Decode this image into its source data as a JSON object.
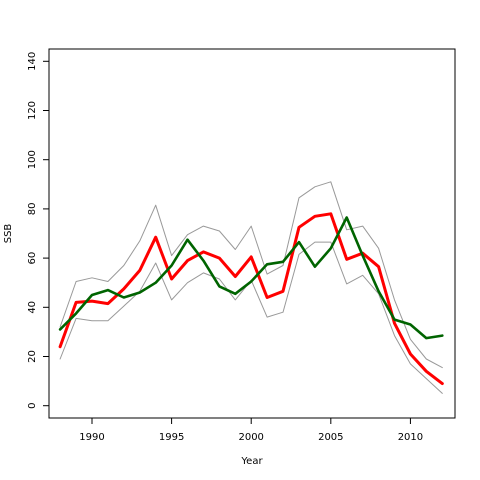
{
  "chart_data": {
    "type": "line",
    "title": "",
    "xlabel": "Year",
    "ylabel": "SSB",
    "xlim": [
      1987.3,
      2012.8
    ],
    "ylim": [
      -5,
      145
    ],
    "xticks": [
      1990,
      1995,
      2000,
      2005,
      2010
    ],
    "yticks": [
      0,
      20,
      40,
      60,
      80,
      100,
      120,
      140
    ],
    "grid": false,
    "legend": "none",
    "x": [
      1988,
      1989,
      1990,
      1991,
      1992,
      1993,
      1994,
      1995,
      1996,
      1997,
      1998,
      1999,
      2000,
      2001,
      2002,
      2003,
      2004,
      2005,
      2006,
      2007,
      2008,
      2009,
      2010,
      2011,
      2012
    ],
    "series": [
      {
        "color": "#999999",
        "style": "upper-bound",
        "width": 1,
        "values": [
          32,
          50.5,
          52,
          50.5,
          57,
          67,
          81.5,
          61,
          69.5,
          73,
          71,
          63.5,
          73,
          53.5,
          57,
          84.5,
          89,
          91,
          71.5,
          73,
          64,
          43,
          27,
          19,
          15.5
        ]
      },
      {
        "color": "#999999",
        "style": "lower-bound",
        "width": 1,
        "values": [
          19,
          35.5,
          34.5,
          34.5,
          40.5,
          46.5,
          58,
          43,
          50,
          54,
          51.5,
          43,
          51,
          36,
          38,
          61.5,
          66.5,
          66.5,
          49.5,
          53,
          45.5,
          28.5,
          17,
          11,
          5
        ]
      },
      {
        "color": "#ff0000",
        "style": "estimate-a",
        "width": 3,
        "values": [
          24,
          42,
          42.5,
          41.5,
          47.5,
          55,
          68.5,
          51.5,
          59,
          62.5,
          60,
          52.5,
          60.5,
          44,
          46.5,
          72.5,
          77,
          78,
          59.5,
          62,
          56.5,
          33.5,
          21,
          14,
          9
        ]
      },
      {
        "color": "#006400",
        "style": "estimate-b",
        "width": 2.6,
        "values": [
          31,
          37.5,
          45,
          47,
          44,
          46,
          50,
          57,
          67.5,
          59,
          48.5,
          45.5,
          50.5,
          57.5,
          58.5,
          66.5,
          56.5,
          64,
          76.5,
          61,
          46.5,
          35,
          33,
          27.5,
          28.5
        ]
      }
    ]
  }
}
